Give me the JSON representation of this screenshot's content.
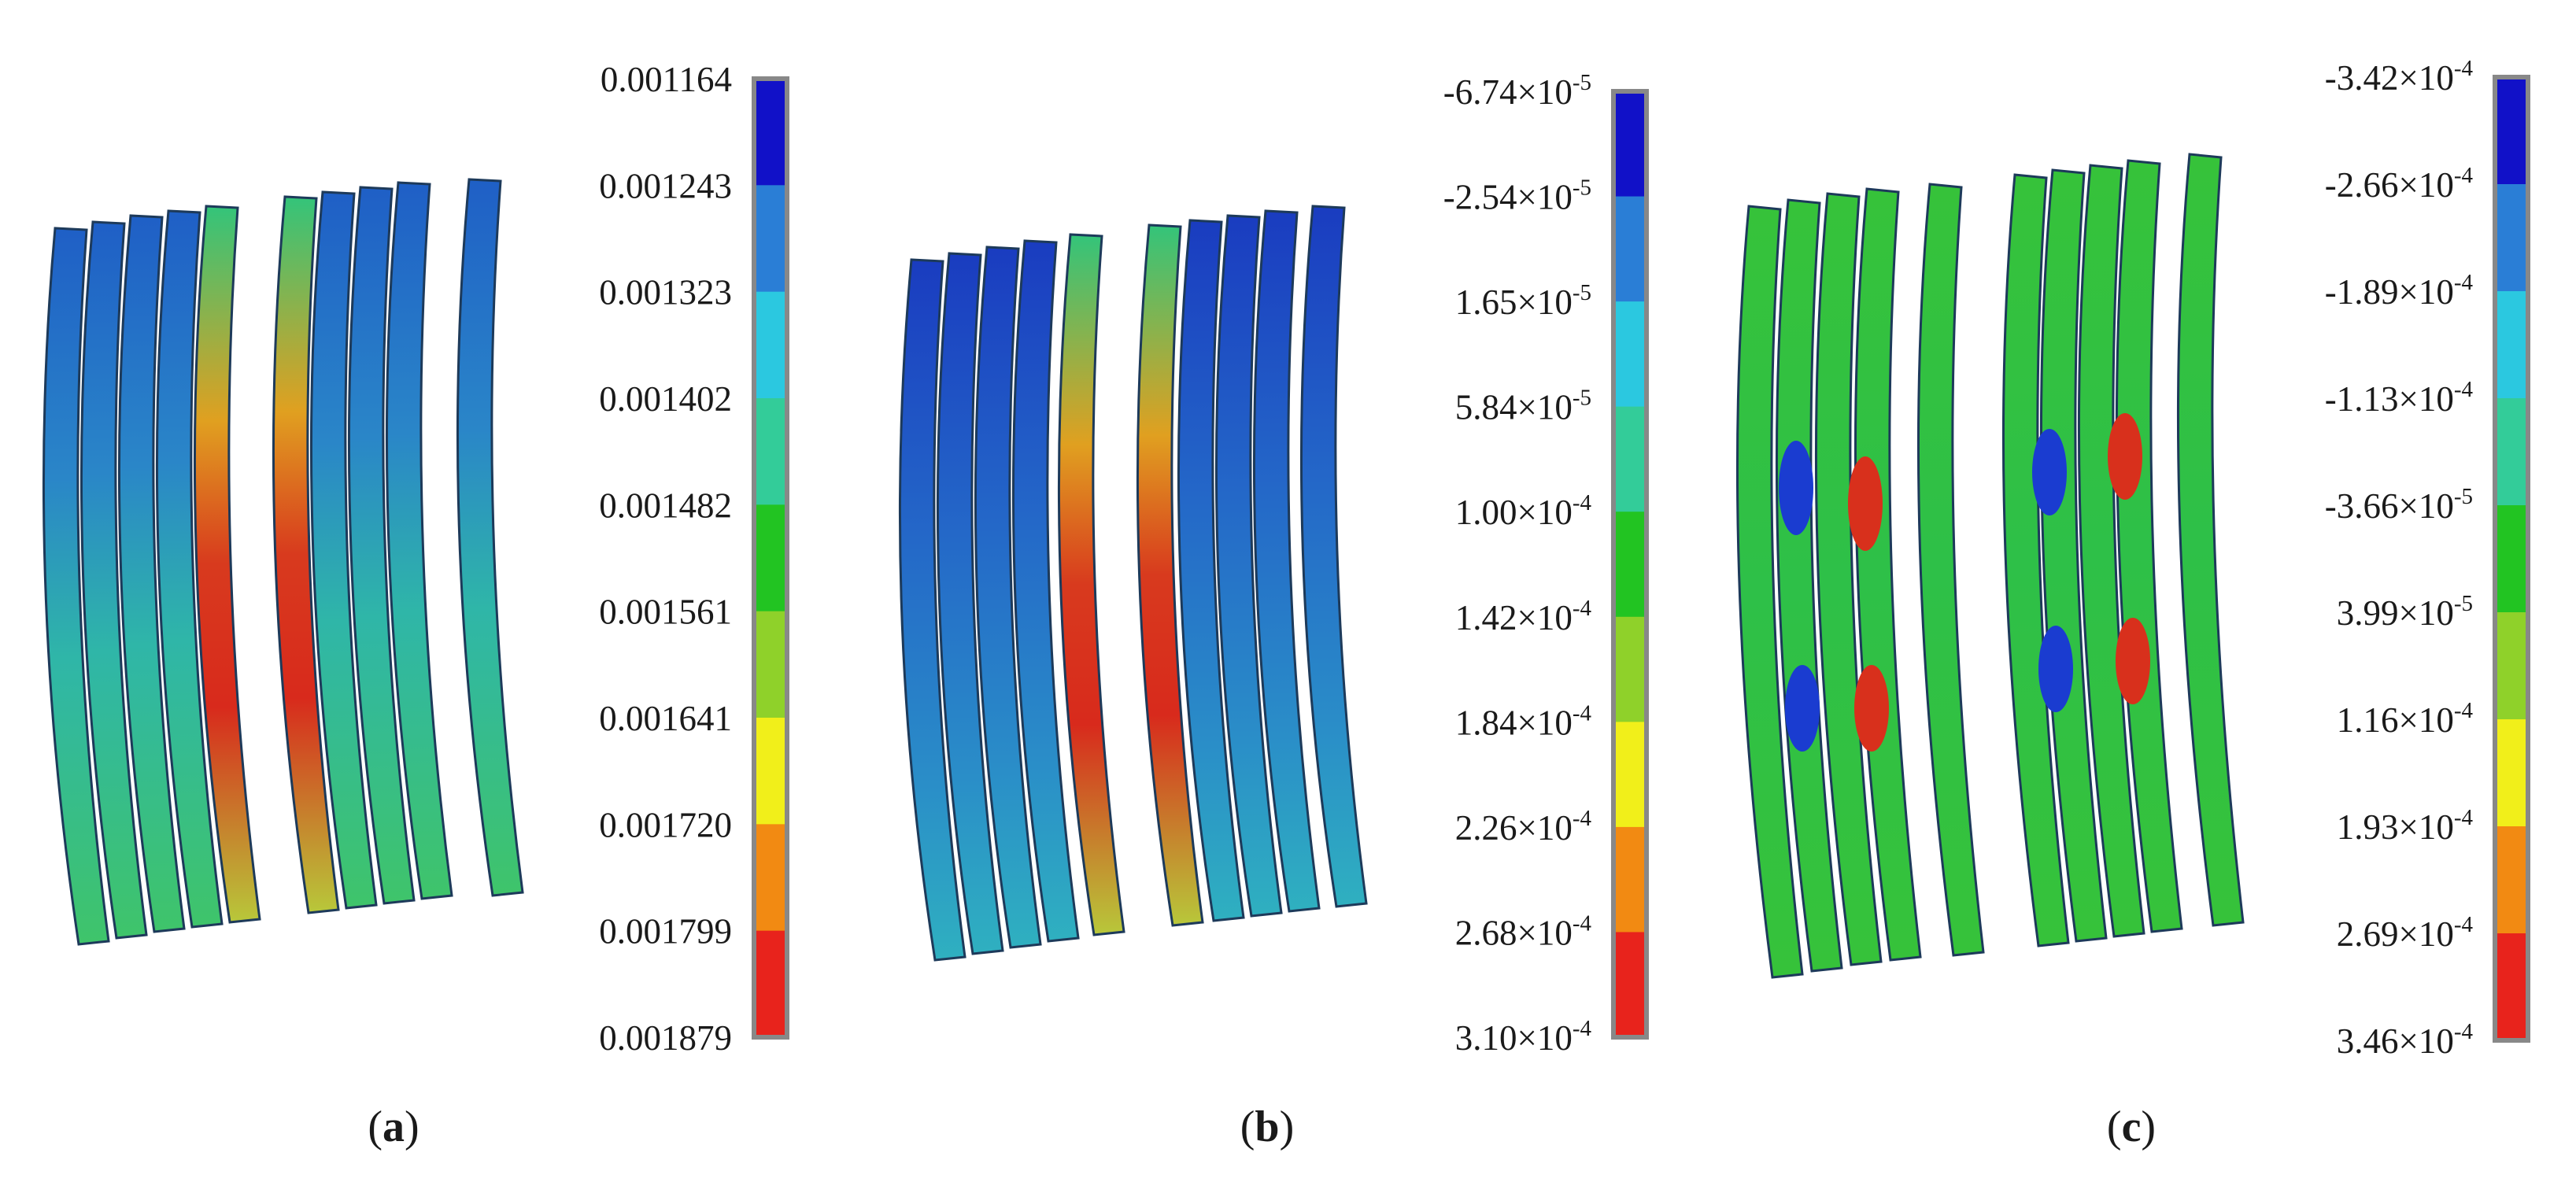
{
  "panels": [
    {
      "label": "a",
      "colorbar_ticks": [
        {
          "text": "0.001164"
        },
        {
          "text": "0.001243"
        },
        {
          "text": "0.001323"
        },
        {
          "text": "0.001402"
        },
        {
          "text": "0.001482"
        },
        {
          "text": "0.001561"
        },
        {
          "text": "0.001641"
        },
        {
          "text": "0.001720"
        },
        {
          "text": "0.001799"
        },
        {
          "text": "0.001879"
        }
      ]
    },
    {
      "label": "b",
      "colorbar_ticks": [
        {
          "mantissa": "-6.74",
          "base": "×10",
          "exp": "-5"
        },
        {
          "mantissa": "-2.54",
          "base": "×10",
          "exp": "-5"
        },
        {
          "mantissa": "1.65",
          "base": "×10",
          "exp": "-5"
        },
        {
          "mantissa": "5.84",
          "base": "×10",
          "exp": "-5"
        },
        {
          "mantissa": "1.00",
          "base": "×10",
          "exp": "-4"
        },
        {
          "mantissa": "1.42",
          "base": "×10",
          "exp": "-4"
        },
        {
          "mantissa": "1.84",
          "base": "×10",
          "exp": "-4"
        },
        {
          "mantissa": "2.26",
          "base": "×10",
          "exp": "-4"
        },
        {
          "mantissa": "2.68",
          "base": "×10",
          "exp": "-4"
        },
        {
          "mantissa": "3.10",
          "base": "×10",
          "exp": "-4"
        }
      ]
    },
    {
      "label": "c",
      "colorbar_ticks": [
        {
          "mantissa": "-3.42",
          "base": "×10",
          "exp": "-4"
        },
        {
          "mantissa": "-2.66",
          "base": "×10",
          "exp": "-4"
        },
        {
          "mantissa": "-1.89",
          "base": "×10",
          "exp": "-4"
        },
        {
          "mantissa": "-1.13",
          "base": "×10",
          "exp": "-4"
        },
        {
          "mantissa": "-3.66",
          "base": "×10",
          "exp": "-5"
        },
        {
          "mantissa": "3.99",
          "base": "×10",
          "exp": "-5"
        },
        {
          "mantissa": "1.16",
          "base": "×10",
          "exp": "-4"
        },
        {
          "mantissa": "1.93",
          "base": "×10",
          "exp": "-4"
        },
        {
          "mantissa": "2.69",
          "base": "×10",
          "exp": "-4"
        },
        {
          "mantissa": "3.46",
          "base": "×10",
          "exp": "-4"
        }
      ]
    }
  ],
  "colormap": [
    "#1111c8",
    "#2a7ed6",
    "#2bc8e0",
    "#33cc99",
    "#22c422",
    "#8fd12a",
    "#f1ef1a",
    "#f28a12",
    "#e8231c"
  ],
  "colormap_order": "blue-top-to-red-bottom",
  "colorbar_border": "#888888"
}
